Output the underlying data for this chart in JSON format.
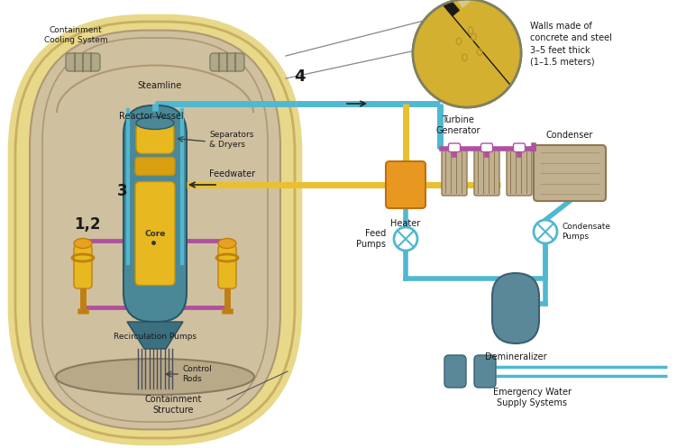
{
  "fig_width": 7.51,
  "fig_height": 4.97,
  "dpi": 100,
  "bg_color": "#ffffff",
  "cont_outer_fill": "#e8d88a",
  "cont_outer_edge": "#c8b060",
  "cont_inner_fill": "#cfc0a0",
  "cont_inner_edge": "#b09870",
  "floor_fill": "#b8aa88",
  "floor_edge": "#8a7a60",
  "rv_fill": "#4a8898",
  "rv_edge": "#2a5868",
  "core_fill": "#e8b820",
  "core_edge": "#c89000",
  "sep_fill": "#e8b820",
  "cone_fill": "#3a7080",
  "cone_edge": "#2a5060",
  "pump_fill": "#e8b820",
  "pump_edge": "#c08010",
  "pipe_teal": "#50b8d0",
  "pipe_yellow": "#e8c030",
  "pipe_purple": "#b050a0",
  "heater_fill": "#e89820",
  "heater_edge": "#c07010",
  "turbine_fill": "#c0b090",
  "turbine_edge": "#907850",
  "turb_pipe": "#b050a0",
  "cond_fill": "#c0b090",
  "cond_edge": "#907850",
  "tank_fill": "#5a8898",
  "tank_edge": "#3a6070",
  "em_fill": "#5a8898",
  "em_edge": "#3a6070",
  "cool_fill": "#b0a888",
  "cool_edge": "#808060",
  "zoom_concrete": "#d8c888",
  "zoom_steel": "#1a1a1a",
  "zoom_yellow": "#d4b030",
  "zoom_edge": "#808060",
  "text_color": "#1a1a1a",
  "label_fs": 7.0,
  "annotations": {
    "containment_cooling": "Containment\nCooling System",
    "steamline": "Steamline",
    "reactor_vessel": "Reactor Vessel",
    "separators": "Separators\n& Dryers",
    "feedwater": "Feedwater",
    "core": "Core",
    "control_rods": "Control\nRods",
    "recirc_pumps": "Recirculation Pumps",
    "containment_structure": "Containment\nStructure",
    "turbine_gen": "Turbine\nGenerator",
    "heater": "Heater",
    "condenser": "Condenser",
    "condensate_pumps": "Condensate\nPumps",
    "feed_pumps": "Feed\nPumps",
    "demineralizer": "Demineralizer",
    "emergency_water": "Emergency Water\nSupply Systems",
    "walls_text": "Walls made of\nconcrete and steel\n3–5 feet thick\n(1–1.5 meters)",
    "num_1_2": "1,2",
    "num_3": "3",
    "num_4": "4"
  }
}
